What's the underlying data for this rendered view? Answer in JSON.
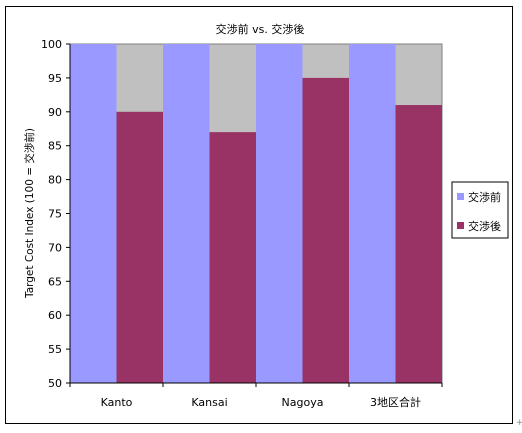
{
  "chart_data": {
    "type": "bar",
    "title": "交渉前 vs. 交渉後",
    "xlabel": "",
    "ylabel": "Target Cost Index (100 = 交渉前)",
    "categories": [
      "Kanto",
      "Kansai",
      "Nagoya",
      "3地区合計"
    ],
    "series": [
      {
        "name": "交渉前",
        "values": [
          100,
          100,
          100,
          100
        ],
        "color": "#9999ff"
      },
      {
        "name": "交渉後",
        "values": [
          90,
          87,
          95,
          91
        ],
        "color": "#993366"
      }
    ],
    "ylim": [
      50,
      100
    ],
    "yticks": [
      50,
      55,
      60,
      65,
      70,
      75,
      80,
      85,
      90,
      95,
      100
    ],
    "grid": false,
    "legend": "right",
    "plot_background": "#c0c0c0"
  }
}
